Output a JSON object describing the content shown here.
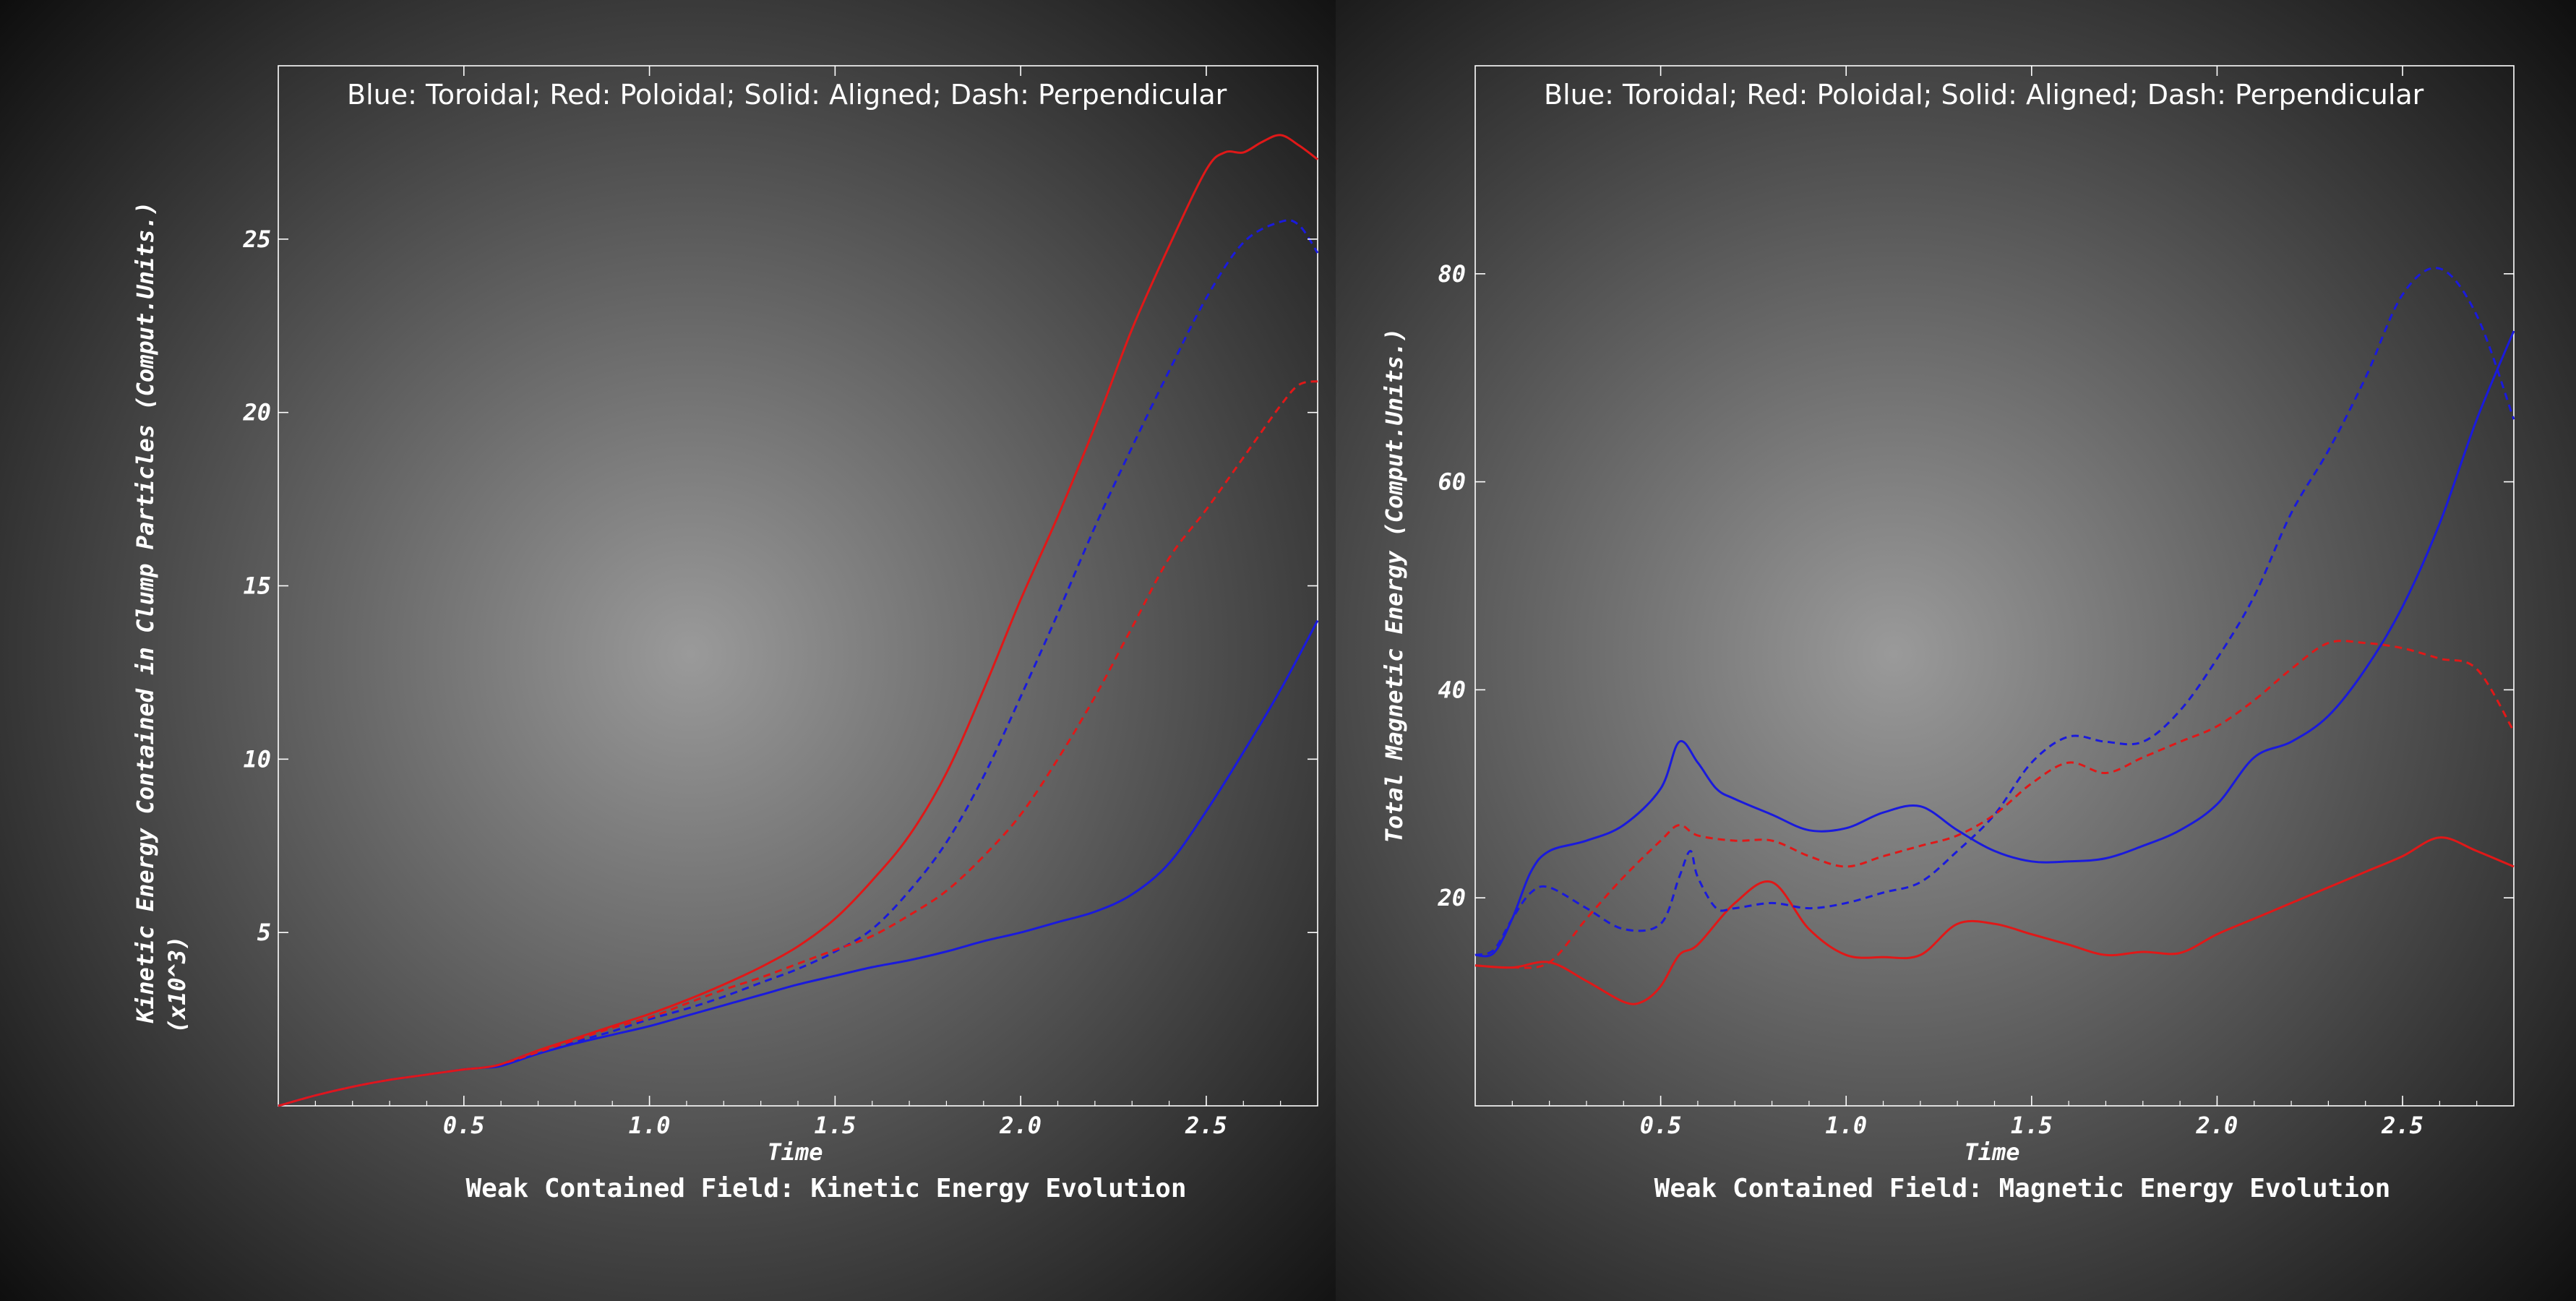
{
  "colors": {
    "toroidal": "#1a1adc",
    "poloidal": "#e01818",
    "axes": "#ffffff",
    "background_center": "#9a9a9a",
    "background_edge": "#0a0a0a"
  },
  "chart_data": [
    {
      "type": "line",
      "title": "Weak Contained Field: Kinetic Energy Evolution",
      "xlabel": "Time",
      "ylabel": "Kinetic Energy Contained in Clump Particles (Comput.Units.)",
      "ylabel_multiplier": "(x10^3)",
      "annotation": "Blue: Toroidal; Red: Poloidal; Solid: Aligned; Dash: Perpendicular",
      "xlim": [
        0,
        2.8
      ],
      "ylim": [
        0,
        30
      ],
      "xticks": [
        "0.5",
        "1.0",
        "1.5",
        "2.0",
        "2.5"
      ],
      "xtick_values": [
        0.5,
        1.0,
        1.5,
        2.0,
        2.5
      ],
      "yticks": [
        "5",
        "10",
        "15",
        "20",
        "25"
      ],
      "ytick_values": [
        5,
        10,
        15,
        20,
        25
      ],
      "grid": false,
      "series": [
        {
          "color_key": "toroidal",
          "style": "solid",
          "x": [
            0.0,
            0.1,
            0.2,
            0.3,
            0.4,
            0.5,
            0.55,
            0.6,
            0.7,
            0.8,
            0.9,
            1.0,
            1.1,
            1.2,
            1.3,
            1.4,
            1.5,
            1.6,
            1.7,
            1.8,
            1.9,
            2.0,
            2.1,
            2.2,
            2.3,
            2.4,
            2.5,
            2.6,
            2.7,
            2.8
          ],
          "y": [
            0.0,
            0.3,
            0.55,
            0.75,
            0.9,
            1.05,
            1.1,
            1.15,
            1.5,
            1.8,
            2.05,
            2.3,
            2.6,
            2.9,
            3.2,
            3.5,
            3.75,
            4.0,
            4.2,
            4.45,
            4.75,
            5.0,
            5.3,
            5.6,
            6.1,
            7.0,
            8.5,
            10.2,
            12.0,
            14.0
          ]
        },
        {
          "color_key": "poloidal",
          "style": "solid",
          "x": [
            0.0,
            0.1,
            0.2,
            0.3,
            0.4,
            0.5,
            0.55,
            0.6,
            0.7,
            0.8,
            0.9,
            1.0,
            1.1,
            1.2,
            1.3,
            1.4,
            1.5,
            1.6,
            1.7,
            1.8,
            1.9,
            2.0,
            2.1,
            2.2,
            2.3,
            2.4,
            2.5,
            2.55,
            2.6,
            2.65,
            2.7,
            2.75,
            2.8
          ],
          "y": [
            0.0,
            0.3,
            0.55,
            0.75,
            0.9,
            1.05,
            1.1,
            1.2,
            1.6,
            1.95,
            2.3,
            2.65,
            3.05,
            3.5,
            4.0,
            4.6,
            5.4,
            6.5,
            7.8,
            9.6,
            12.0,
            14.6,
            17.0,
            19.6,
            22.4,
            24.8,
            27.0,
            27.5,
            27.5,
            27.8,
            28.0,
            27.7,
            27.3
          ]
        },
        {
          "color_key": "toroidal",
          "style": "dash",
          "x": [
            0.0,
            0.1,
            0.2,
            0.3,
            0.4,
            0.5,
            0.55,
            0.6,
            0.7,
            0.8,
            0.9,
            1.0,
            1.1,
            1.2,
            1.3,
            1.4,
            1.5,
            1.6,
            1.7,
            1.8,
            1.9,
            2.0,
            2.1,
            2.2,
            2.3,
            2.4,
            2.5,
            2.6,
            2.7,
            2.75,
            2.8
          ],
          "y": [
            0.0,
            0.3,
            0.55,
            0.75,
            0.9,
            1.05,
            1.1,
            1.2,
            1.55,
            1.85,
            2.15,
            2.5,
            2.8,
            3.15,
            3.55,
            3.95,
            4.45,
            5.1,
            6.2,
            7.6,
            9.5,
            11.8,
            14.2,
            16.7,
            19.0,
            21.2,
            23.3,
            24.9,
            25.5,
            25.4,
            24.6
          ]
        },
        {
          "color_key": "poloidal",
          "style": "dash",
          "x": [
            0.0,
            0.1,
            0.2,
            0.3,
            0.4,
            0.5,
            0.55,
            0.6,
            0.7,
            0.8,
            0.9,
            1.0,
            1.1,
            1.2,
            1.3,
            1.4,
            1.5,
            1.6,
            1.7,
            1.8,
            1.9,
            2.0,
            2.1,
            2.2,
            2.3,
            2.4,
            2.5,
            2.6,
            2.7,
            2.75,
            2.8
          ],
          "y": [
            0.0,
            0.3,
            0.55,
            0.75,
            0.9,
            1.05,
            1.1,
            1.2,
            1.55,
            1.9,
            2.25,
            2.55,
            2.95,
            3.35,
            3.7,
            4.1,
            4.5,
            4.9,
            5.5,
            6.2,
            7.2,
            8.4,
            10.0,
            11.8,
            13.8,
            15.8,
            17.2,
            18.7,
            20.2,
            20.8,
            20.9
          ]
        }
      ]
    },
    {
      "type": "line",
      "title": "Weak Contained Field: Magnetic Energy Evolution",
      "xlabel": "Time",
      "ylabel": "Total Magnetic Energy (Comput.Units.)",
      "annotation": "Blue: Toroidal; Red: Poloidal; Solid: Aligned; Dash: Perpendicular",
      "xlim": [
        0,
        2.8
      ],
      "ylim": [
        0,
        100
      ],
      "xticks": [
        "0.5",
        "1.0",
        "1.5",
        "2.0",
        "2.5"
      ],
      "xtick_values": [
        0.5,
        1.0,
        1.5,
        2.0,
        2.5
      ],
      "yticks": [
        "20",
        "40",
        "60",
        "80"
      ],
      "ytick_values": [
        20,
        40,
        60,
        80
      ],
      "grid": false,
      "series": [
        {
          "color_key": "toroidal",
          "style": "solid",
          "x": [
            0.0,
            0.05,
            0.1,
            0.15,
            0.2,
            0.3,
            0.4,
            0.5,
            0.55,
            0.6,
            0.65,
            0.7,
            0.8,
            0.9,
            1.0,
            1.1,
            1.2,
            1.3,
            1.4,
            1.5,
            1.6,
            1.7,
            1.8,
            1.9,
            2.0,
            2.1,
            2.2,
            2.3,
            2.4,
            2.5,
            2.6,
            2.7,
            2.8
          ],
          "y": [
            14.5,
            14.7,
            18.0,
            22.5,
            24.5,
            25.5,
            27.0,
            30.5,
            35.0,
            33.0,
            30.5,
            29.5,
            28.0,
            26.5,
            26.7,
            28.2,
            28.8,
            26.5,
            24.5,
            23.5,
            23.5,
            23.8,
            25.0,
            26.5,
            29.0,
            33.5,
            35.0,
            37.5,
            42.0,
            48.0,
            56.0,
            66.0,
            74.5
          ]
        },
        {
          "color_key": "poloidal",
          "style": "solid",
          "x": [
            0.0,
            0.1,
            0.2,
            0.3,
            0.4,
            0.45,
            0.5,
            0.55,
            0.6,
            0.7,
            0.8,
            0.9,
            1.0,
            1.1,
            1.2,
            1.3,
            1.4,
            1.5,
            1.6,
            1.7,
            1.8,
            1.9,
            2.0,
            2.1,
            2.2,
            2.3,
            2.4,
            2.5,
            2.6,
            2.7,
            2.8
          ],
          "y": [
            13.5,
            13.3,
            13.8,
            12.0,
            10.0,
            10.0,
            11.5,
            14.5,
            15.5,
            19.5,
            21.5,
            17.0,
            14.5,
            14.3,
            14.5,
            17.5,
            17.5,
            16.5,
            15.5,
            14.5,
            14.8,
            14.7,
            16.5,
            18.0,
            19.5,
            21.0,
            22.5,
            24.0,
            25.8,
            24.5,
            23.0
          ]
        },
        {
          "color_key": "toroidal",
          "style": "dash",
          "x": [
            0.0,
            0.05,
            0.1,
            0.15,
            0.2,
            0.3,
            0.4,
            0.5,
            0.55,
            0.58,
            0.6,
            0.65,
            0.7,
            0.8,
            0.9,
            1.0,
            1.1,
            1.2,
            1.3,
            1.4,
            1.5,
            1.6,
            1.7,
            1.8,
            1.9,
            2.0,
            2.1,
            2.2,
            2.3,
            2.4,
            2.5,
            2.6,
            2.7,
            2.8
          ],
          "y": [
            14.5,
            15.0,
            18.0,
            20.5,
            21.0,
            19.0,
            17.0,
            17.5,
            22.0,
            24.5,
            22.0,
            19.0,
            19.0,
            19.5,
            19.0,
            19.5,
            20.5,
            21.5,
            24.5,
            28.0,
            33.0,
            35.5,
            35.0,
            35.0,
            38.0,
            43.0,
            49.0,
            57.0,
            63.0,
            70.0,
            78.0,
            80.5,
            76.0,
            66.0
          ]
        },
        {
          "color_key": "poloidal",
          "style": "dash",
          "x": [
            0.0,
            0.1,
            0.2,
            0.3,
            0.4,
            0.5,
            0.55,
            0.6,
            0.7,
            0.8,
            0.9,
            1.0,
            1.1,
            1.2,
            1.3,
            1.4,
            1.5,
            1.6,
            1.7,
            1.8,
            1.9,
            2.0,
            2.1,
            2.2,
            2.3,
            2.4,
            2.5,
            2.6,
            2.7,
            2.8
          ],
          "y": [
            13.5,
            13.3,
            13.8,
            18.0,
            22.0,
            25.5,
            27.0,
            26.0,
            25.5,
            25.5,
            24.0,
            23.0,
            24.0,
            25.0,
            26.0,
            28.0,
            31.0,
            33.0,
            32.0,
            33.5,
            35.0,
            36.5,
            39.0,
            42.0,
            44.5,
            44.5,
            44.0,
            43.0,
            42.0,
            36.0
          ]
        }
      ]
    }
  ]
}
